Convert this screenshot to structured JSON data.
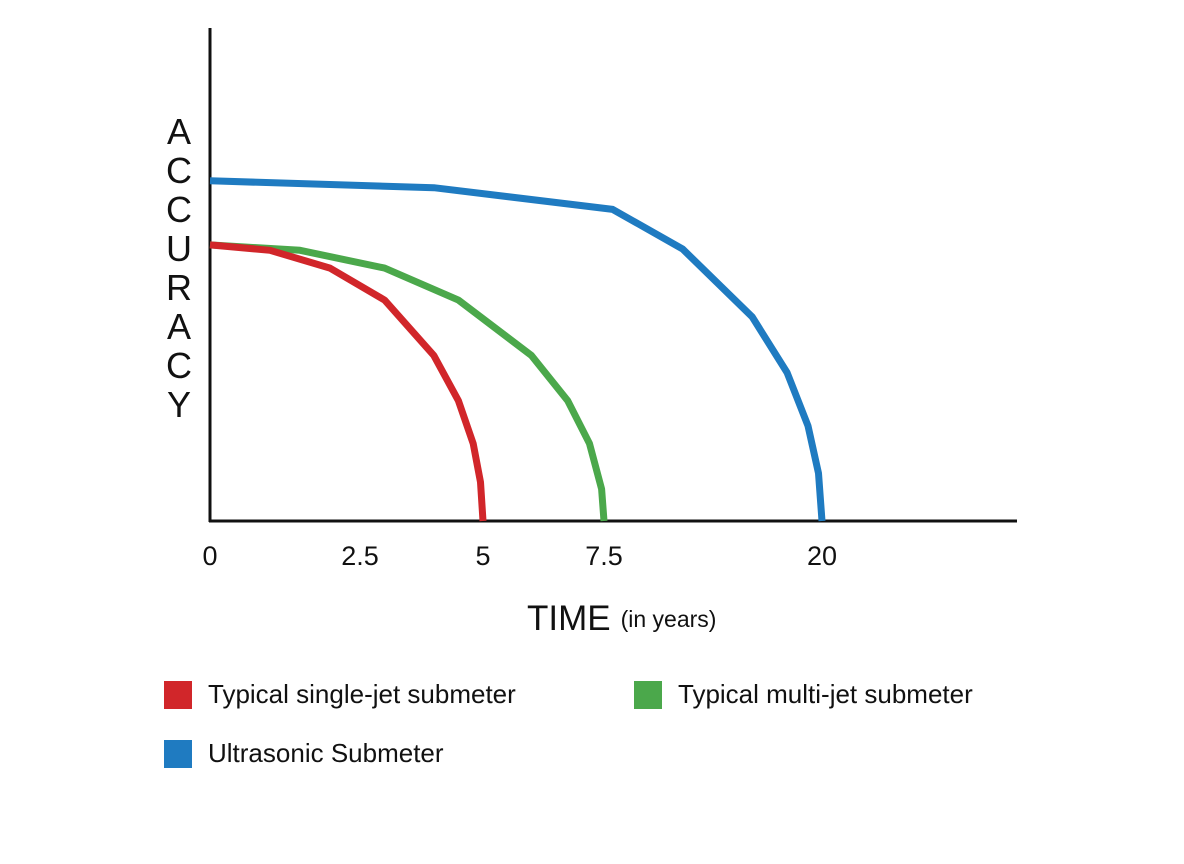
{
  "chart_data": {
    "type": "line",
    "y_label": "ACCURACY",
    "x_label": "TIME",
    "x_label_note": "(in years)",
    "xlim": [
      0,
      31
    ],
    "xticks": [
      0,
      2.5,
      5,
      7.5,
      20
    ],
    "ylim": [
      0,
      100
    ],
    "series": [
      {
        "name": "Typical single-jet submeter",
        "color": "#d1262a",
        "x": [
          0,
          1,
          2,
          3,
          4,
          4.5,
          4.8,
          4.95,
          5
        ],
        "values": [
          56,
          54.9,
          51.3,
          44.8,
          33.6,
          24.4,
          15.7,
          7.9,
          0
        ]
      },
      {
        "name": "Typical multi-jet submeter",
        "color": "#4ba84b",
        "x": [
          0,
          1.5,
          3,
          4.5,
          6,
          6.75,
          7.2,
          7.45,
          7.5
        ],
        "values": [
          56,
          54.9,
          51.3,
          44.8,
          33.6,
          24.4,
          15.7,
          6.5,
          0
        ]
      },
      {
        "name": "Ultrasonic Submeter",
        "color": "#1f7bc1",
        "x": [
          0,
          4,
          8,
          12,
          16,
          18,
          19.2,
          19.8,
          20
        ],
        "values": [
          69,
          67.6,
          63.2,
          55.2,
          41.4,
          30.1,
          19.3,
          9.7,
          0
        ]
      }
    ]
  }
}
